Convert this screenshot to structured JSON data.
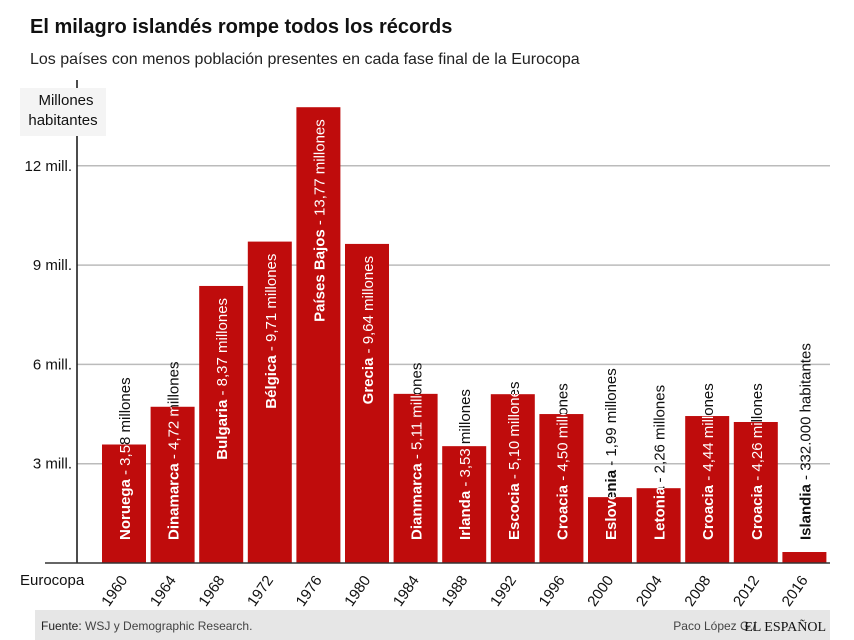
{
  "header": {
    "title": "El milagro islandés rompe todos los récords",
    "subtitle": "Los países con menos población presentes en cada fase final de la Eurocopa"
  },
  "footer": {
    "source_label": "Fuente:",
    "source_text": "WSJ y Demographic Research.",
    "author": "Paco López G /",
    "brand": "EL ESPAÑOL"
  },
  "chart_data": {
    "type": "bar",
    "ylabel": "Millones habitantes",
    "ylabel_lines": [
      "Millones",
      "habitantes"
    ],
    "xlabel": "Eurocopa",
    "ylim": [
      0,
      14
    ],
    "yticks": [
      3,
      6,
      9,
      12
    ],
    "ytick_labels": [
      "3 mill.",
      "6 mill.",
      "9 mill.",
      "12 mill."
    ],
    "grid": true,
    "bar_color": "#bf0c0c",
    "categories": [
      "1960",
      "1964",
      "1968",
      "1972",
      "1976",
      "1980",
      "1984",
      "1988",
      "1992",
      "1996",
      "2000",
      "2004",
      "2008",
      "2012",
      "2016"
    ],
    "countries": [
      "Noruega",
      "Dinamarca",
      "Bulgaria",
      "Bélgica",
      "Países Bajos",
      "Grecia",
      "Dianmarca",
      "Irlanda",
      "Escocia",
      "Croacia",
      "Eslovenia",
      "Letonia",
      "Croacia",
      "Croacia",
      "Islandia"
    ],
    "value_labels": [
      "3,58 millones",
      "4,72 millones",
      "8,37 millones",
      "9,71 millones",
      "13,77 millones",
      "9,64 millones",
      "5,11 millones",
      "3,53 millones",
      "5,10 millones",
      "4,50 millones",
      "1,99 millones",
      "2,26 millones",
      "4,44 millones",
      "4,26 millones",
      "332.000 habitantes"
    ],
    "values": [
      3.58,
      4.72,
      8.37,
      9.71,
      13.77,
      9.64,
      5.11,
      3.53,
      5.1,
      4.5,
      1.99,
      2.26,
      4.44,
      4.26,
      0.332
    ]
  }
}
